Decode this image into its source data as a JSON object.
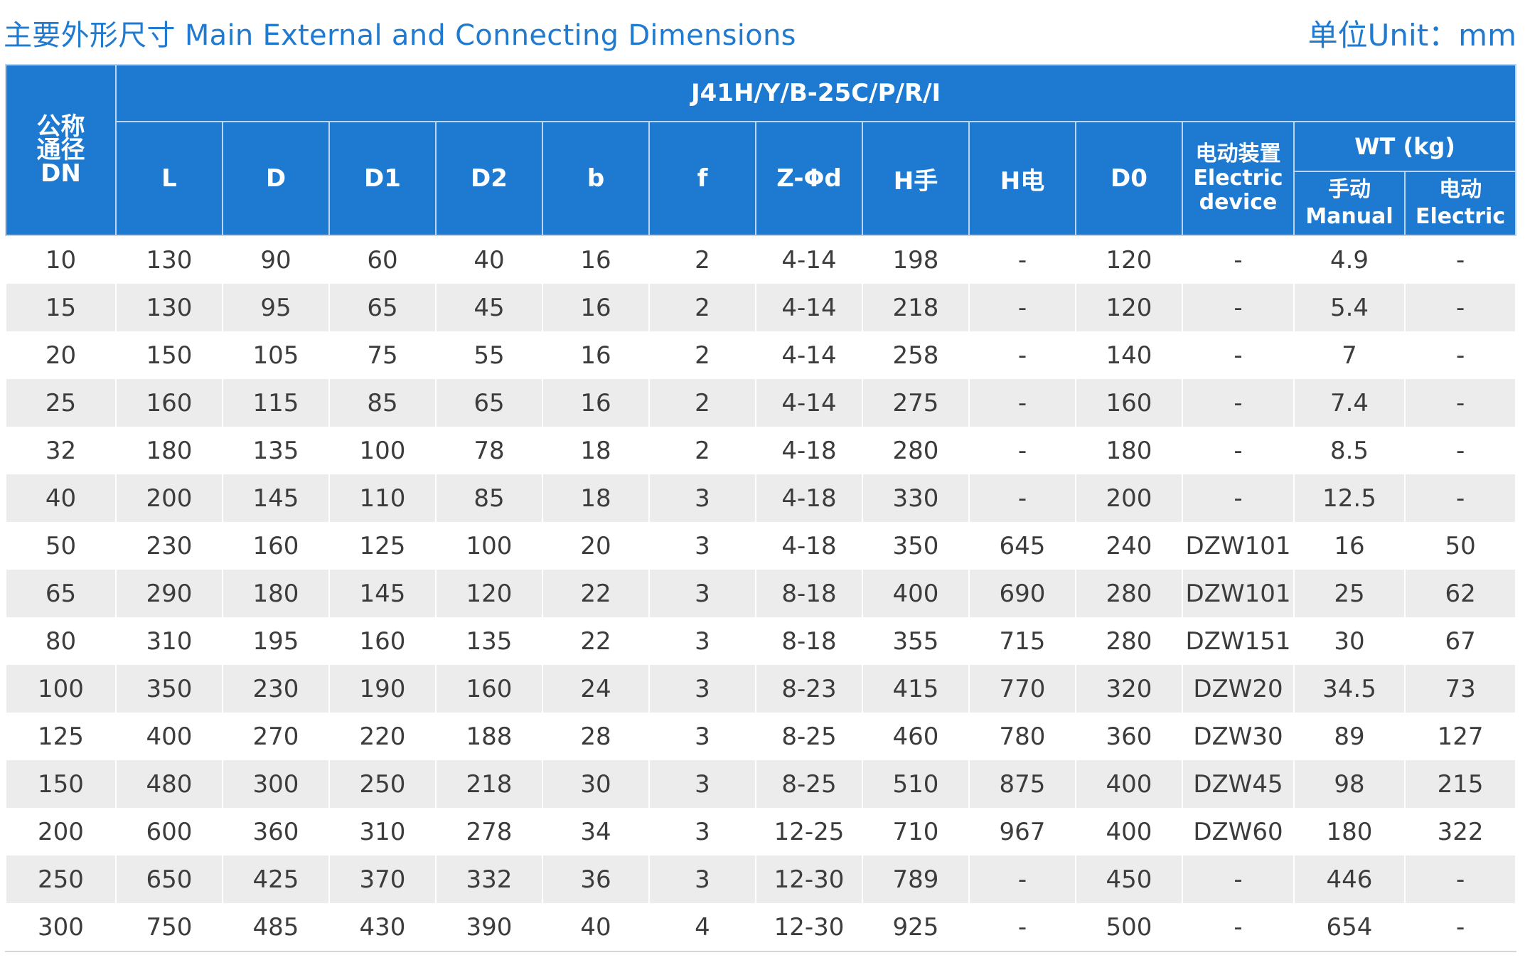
{
  "header": {
    "title_cn": "主要外形尺寸",
    "title_en": "Main External and Connecting Dimensions",
    "unit": "单位Unit：mm"
  },
  "table": {
    "model": "J41H/Y/B-25C/P/R/I",
    "dn_header": [
      "公称",
      "通径",
      "DN"
    ],
    "columns": [
      "L",
      "D",
      "D1",
      "D2",
      "b",
      "f",
      "Z-Φd",
      "H手",
      "H电",
      "D0"
    ],
    "device_header": [
      "电动装置",
      "Electric",
      "device"
    ],
    "wt_header": "WT (kg)",
    "wt_sub": [
      [
        "手动",
        "Manual"
      ],
      [
        "电动",
        "Electric"
      ]
    ],
    "rows": [
      [
        "10",
        "130",
        "90",
        "60",
        "40",
        "16",
        "2",
        "4-14",
        "198",
        "-",
        "120",
        "-",
        "4.9",
        "-"
      ],
      [
        "15",
        "130",
        "95",
        "65",
        "45",
        "16",
        "2",
        "4-14",
        "218",
        "-",
        "120",
        "-",
        "5.4",
        "-"
      ],
      [
        "20",
        "150",
        "105",
        "75",
        "55",
        "16",
        "2",
        "4-14",
        "258",
        "-",
        "140",
        "-",
        "7",
        "-"
      ],
      [
        "25",
        "160",
        "115",
        "85",
        "65",
        "16",
        "2",
        "4-14",
        "275",
        "-",
        "160",
        "-",
        "7.4",
        "-"
      ],
      [
        "32",
        "180",
        "135",
        "100",
        "78",
        "18",
        "2",
        "4-18",
        "280",
        "-",
        "180",
        "-",
        "8.5",
        "-"
      ],
      [
        "40",
        "200",
        "145",
        "110",
        "85",
        "18",
        "3",
        "4-18",
        "330",
        "-",
        "200",
        "-",
        "12.5",
        "-"
      ],
      [
        "50",
        "230",
        "160",
        "125",
        "100",
        "20",
        "3",
        "4-18",
        "350",
        "645",
        "240",
        "DZW101",
        "16",
        "50"
      ],
      [
        "65",
        "290",
        "180",
        "145",
        "120",
        "22",
        "3",
        "8-18",
        "400",
        "690",
        "280",
        "DZW101",
        "25",
        "62"
      ],
      [
        "80",
        "310",
        "195",
        "160",
        "135",
        "22",
        "3",
        "8-18",
        "355",
        "715",
        "280",
        "DZW151",
        "30",
        "67"
      ],
      [
        "100",
        "350",
        "230",
        "190",
        "160",
        "24",
        "3",
        "8-23",
        "415",
        "770",
        "320",
        "DZW20",
        "34.5",
        "73"
      ],
      [
        "125",
        "400",
        "270",
        "220",
        "188",
        "28",
        "3",
        "8-25",
        "460",
        "780",
        "360",
        "DZW30",
        "89",
        "127"
      ],
      [
        "150",
        "480",
        "300",
        "250",
        "218",
        "30",
        "3",
        "8-25",
        "510",
        "875",
        "400",
        "DZW45",
        "98",
        "215"
      ],
      [
        "200",
        "600",
        "360",
        "310",
        "278",
        "34",
        "3",
        "12-25",
        "710",
        "967",
        "400",
        "DZW60",
        "180",
        "322"
      ],
      [
        "250",
        "650",
        "425",
        "370",
        "332",
        "36",
        "3",
        "12-30",
        "789",
        "-",
        "450",
        "-",
        "446",
        "-"
      ],
      [
        "300",
        "750",
        "485",
        "430",
        "390",
        "40",
        "4",
        "12-30",
        "925",
        "-",
        "500",
        "-",
        "654",
        "-"
      ]
    ]
  },
  "colors": {
    "header_bg": "#1e7ad0",
    "title_text": "#1f7ad0",
    "stripe": "#ececec"
  }
}
